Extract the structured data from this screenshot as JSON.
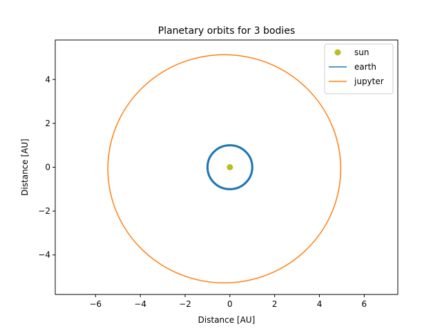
{
  "chart_data": {
    "type": "line",
    "title": "Planetary orbits for 3 bodies",
    "xlabel": "Distance [AU]",
    "ylabel": "Distance [AU]",
    "xlim": [
      -7.8,
      7.5
    ],
    "ylim": [
      -5.8,
      5.8
    ],
    "xticks": [
      -6,
      -4,
      -2,
      0,
      2,
      4,
      6
    ],
    "yticks": [
      -4,
      -2,
      0,
      2,
      4
    ],
    "xtick_labels": [
      "−6",
      "−4",
      "−2",
      "0",
      "2",
      "4",
      "6"
    ],
    "ytick_labels": [
      "−4",
      "−2",
      "0",
      "2",
      "4"
    ],
    "grid": false,
    "legend_position": "top-right",
    "series": [
      {
        "name": "sun",
        "kind": "marker",
        "color": "#bcbd22",
        "points": [
          [
            0,
            0
          ]
        ]
      },
      {
        "name": "earth",
        "kind": "orbit",
        "color": "#1f77b4",
        "center": [
          0.0,
          0.0
        ],
        "radius_x": 1.0,
        "radius_y": 1.0,
        "ring_spread": 0.05
      },
      {
        "name": "jupyter",
        "kind": "orbit",
        "color": "#ff7f0e",
        "center": [
          -0.25,
          -0.07
        ],
        "radius_x": 5.2,
        "radius_y": 5.2,
        "ring_spread": 0.0
      }
    ]
  }
}
